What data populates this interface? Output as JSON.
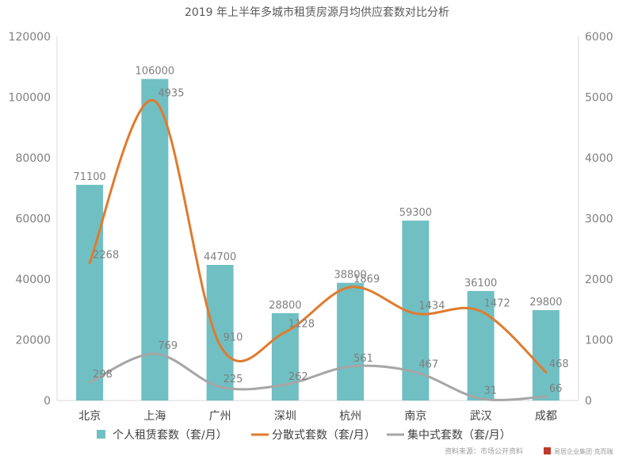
{
  "chart_data": {
    "type": "bar",
    "title": "2019 年上半年多城市租赁房源月均供应套数对比分析",
    "categories": [
      "北京",
      "上海",
      "广州",
      "深圳",
      "杭州",
      "南京",
      "武汉",
      "成都"
    ],
    "series": [
      {
        "name": "个人租赁套数（套/月）",
        "type": "bar",
        "axis": "left",
        "color": "#70bfc3",
        "values": [
          71100,
          106000,
          44700,
          28800,
          38800,
          59300,
          36100,
          29800
        ]
      },
      {
        "name": "分散式套数（套/月）",
        "type": "line",
        "axis": "right",
        "color": "#e07b2e",
        "values": [
          2268,
          4935,
          910,
          1128,
          1869,
          1434,
          1472,
          468
        ]
      },
      {
        "name": "集中式套数（套/月）",
        "type": "line",
        "axis": "right",
        "color": "#a6a6a6",
        "values": [
          298,
          769,
          225,
          262,
          561,
          467,
          31,
          66
        ]
      }
    ],
    "y_left": {
      "min": 0,
      "max": 120000,
      "ticks": [
        0,
        20000,
        40000,
        60000,
        80000,
        100000,
        120000
      ]
    },
    "y_right": {
      "min": 0,
      "max": 6000,
      "ticks": [
        0,
        1000,
        2000,
        3000,
        4000,
        5000,
        6000
      ]
    },
    "legend_position": "bottom",
    "grid": false,
    "source_note": "资料来源：市场公开资料",
    "brand_text": "易居企业集团·克而瑞"
  }
}
